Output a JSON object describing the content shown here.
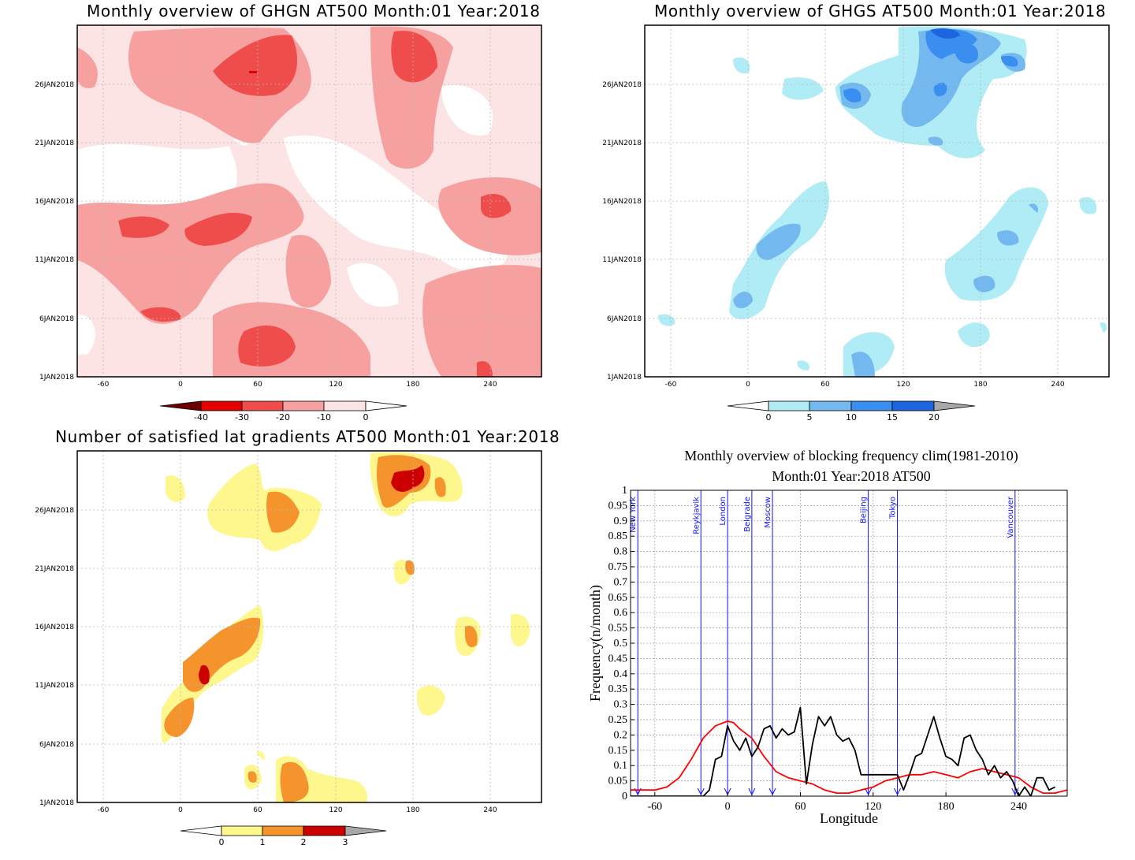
{
  "panels": {
    "ghgn": {
      "title": "Monthly overview of GHGN AT500 Month:01 Year:2018",
      "colorbar_labels": [
        "-40",
        "-30",
        "-20",
        "-10",
        "0"
      ],
      "colors": [
        "#6b0000",
        "#e50000",
        "#ef4c4c",
        "#f7a0a0",
        "#fde4e4",
        "#ffffff"
      ]
    },
    "ghgs": {
      "title": "Monthly overview of GHGS AT500 Month:01 Year:2018",
      "colorbar_labels": [
        "0",
        "5",
        "10",
        "15",
        "20"
      ],
      "colors": [
        "#ffffff",
        "#b0ecf5",
        "#74b8f0",
        "#3a8ef0",
        "#1c64e0",
        "#a8a8a8"
      ]
    },
    "grad": {
      "title": "Number of satisfied lat gradients AT500 Month:01 Year:2018",
      "colorbar_labels": [
        "0",
        "1",
        "2",
        "3"
      ],
      "colors": [
        "#ffffff",
        "#fdf78e",
        "#f5942c",
        "#cc0000",
        "#a8a8a8"
      ]
    },
    "blocking": {
      "title_line1": "Monthly overview of blocking frequency clim(1981-2010)",
      "title_line2": "Month:01 Year:2018  AT500",
      "xlabel": "Longitude",
      "ylabel": "Frequency(n/month)"
    }
  },
  "shared_axes": {
    "x_ticks": [
      "-60",
      "0",
      "60",
      "120",
      "180",
      "240"
    ],
    "date_ticks": [
      "1JAN2018",
      "6JAN2018",
      "11JAN2018",
      "16JAN2018",
      "21JAN2018",
      "26JAN2018"
    ]
  },
  "chart_data": [
    {
      "type": "heatmap",
      "title": "Monthly overview of GHGN AT500 Month:01 Year:2018",
      "xlim": [
        -80,
        280
      ],
      "ylim": [
        "1JAN2018",
        "31JAN2018"
      ],
      "x_ticks": [
        -60,
        0,
        60,
        120,
        180,
        240
      ],
      "legend_levels": [
        -40,
        -30,
        -20,
        -10,
        0
      ],
      "blobs": [
        {
          "lon": 60,
          "day": 28,
          "level": -20
        },
        {
          "lon": 170,
          "day": 28,
          "level": -20
        },
        {
          "lon": 230,
          "day": 16,
          "level": -20
        },
        {
          "lon": 0,
          "day": 14,
          "level": -20
        },
        {
          "lon": 40,
          "day": 13,
          "level": -20
        },
        {
          "lon": -30,
          "day": 14,
          "level": -20
        },
        {
          "lon": 240,
          "day": 1,
          "level": -20
        }
      ]
    },
    {
      "type": "heatmap",
      "title": "Monthly overview of GHGS AT500 Month:01 Year:2018",
      "xlim": [
        -80,
        280
      ],
      "ylim": [
        "1JAN2018",
        "31JAN2018"
      ],
      "x_ticks": [
        -60,
        0,
        60,
        120,
        180,
        240
      ],
      "legend_levels": [
        0,
        5,
        10,
        15,
        20
      ],
      "blobs": [
        {
          "lon": 175,
          "day": 30,
          "level": 15
        },
        {
          "lon": 85,
          "day": 25,
          "level": 10
        },
        {
          "lon": 150,
          "day": 23,
          "level": 10
        },
        {
          "lon": 30,
          "day": 12,
          "level": 10
        },
        {
          "lon": 200,
          "day": 9,
          "level": 10
        },
        {
          "lon": -5,
          "day": 7,
          "level": 10
        },
        {
          "lon": 90,
          "day": 2,
          "level": 10
        }
      ]
    },
    {
      "type": "heatmap",
      "title": "Number of satisfied lat gradients AT500 Month:01 Year:2018",
      "xlim": [
        -80,
        280
      ],
      "ylim": [
        "1JAN2018",
        "31JAN2018"
      ],
      "x_ticks": [
        -60,
        0,
        60,
        120,
        180,
        240
      ],
      "legend_levels": [
        0,
        1,
        2,
        3
      ],
      "blobs": [
        {
          "lon": 175,
          "day": 29,
          "level": 3
        },
        {
          "lon": 80,
          "day": 26,
          "level": 2
        },
        {
          "lon": 18,
          "day": 12,
          "level": 3
        },
        {
          "lon": 0,
          "day": 8,
          "level": 2
        },
        {
          "lon": 225,
          "day": 15,
          "level": 2
        },
        {
          "lon": 90,
          "day": 2,
          "level": 2
        }
      ]
    },
    {
      "type": "line",
      "title": "Monthly overview of blocking frequency clim(1981-2010)",
      "subtitle": "Month:01 Year:2018  AT500",
      "xlabel": "Longitude",
      "ylabel": "Frequency(n/month)",
      "xlim": [
        -80,
        280
      ],
      "ylim": [
        0,
        1
      ],
      "x_ticks": [
        -60,
        0,
        60,
        120,
        180,
        240
      ],
      "y_ticks": [
        0,
        0.05,
        0.1,
        0.15,
        0.2,
        0.25,
        0.3,
        0.35,
        0.4,
        0.45,
        0.5,
        0.55,
        0.6,
        0.65,
        0.7,
        0.75,
        0.8,
        0.85,
        0.9,
        0.95,
        1
      ],
      "grid": true,
      "cities": [
        {
          "name": "New York",
          "lon": -74
        },
        {
          "name": "Reykjavik",
          "lon": -22
        },
        {
          "name": "London",
          "lon": 0
        },
        {
          "name": "Belgrade",
          "lon": 20
        },
        {
          "name": "Moscow",
          "lon": 37
        },
        {
          "name": "Beijing",
          "lon": 116
        },
        {
          "name": "Tokyo",
          "lon": 140
        },
        {
          "name": "Vancouver",
          "lon": 237
        }
      ],
      "series": [
        {
          "color": "#ff0000",
          "x": [
            -80,
            -60,
            -50,
            -40,
            -30,
            -20,
            -10,
            0,
            5,
            10,
            20,
            30,
            40,
            50,
            60,
            70,
            80,
            90,
            100,
            110,
            120,
            130,
            140,
            150,
            160,
            170,
            180,
            190,
            200,
            210,
            220,
            230,
            240,
            250,
            260,
            270,
            280
          ],
          "y": [
            0.02,
            0.02,
            0.03,
            0.06,
            0.12,
            0.19,
            0.23,
            0.245,
            0.24,
            0.22,
            0.19,
            0.13,
            0.08,
            0.06,
            0.05,
            0.04,
            0.02,
            0.01,
            0.01,
            0.02,
            0.03,
            0.05,
            0.06,
            0.07,
            0.07,
            0.08,
            0.07,
            0.06,
            0.08,
            0.09,
            0.08,
            0.07,
            0.06,
            0.03,
            0.01,
            0.01,
            0.02
          ]
        },
        {
          "color": "#000000",
          "x": [
            -80,
            -20,
            -15,
            -10,
            -5,
            0,
            5,
            10,
            15,
            20,
            25,
            30,
            35,
            40,
            45,
            50,
            55,
            60,
            65,
            70,
            75,
            80,
            85,
            90,
            95,
            100,
            105,
            110,
            115,
            120,
            125,
            130,
            135,
            140,
            145,
            150,
            155,
            160,
            165,
            170,
            175,
            180,
            185,
            190,
            195,
            200,
            205,
            210,
            215,
            220,
            225,
            230,
            235,
            240,
            245,
            250,
            255,
            260,
            265,
            270
          ],
          "y": [
            0,
            0,
            0.02,
            0.12,
            0.13,
            0.23,
            0.18,
            0.15,
            0.19,
            0.13,
            0.16,
            0.22,
            0.23,
            0.19,
            0.22,
            0.2,
            0.21,
            0.29,
            0.04,
            0.17,
            0.26,
            0.23,
            0.26,
            0.2,
            0.18,
            0.19,
            0.15,
            0.07,
            0.07,
            0.07,
            0.07,
            0.07,
            0.07,
            0.07,
            0.02,
            0.07,
            0.13,
            0.14,
            0.2,
            0.26,
            0.19,
            0.13,
            0.12,
            0.1,
            0.19,
            0.2,
            0.15,
            0.12,
            0.07,
            0.1,
            0.06,
            0.08,
            0.05,
            0,
            0.03,
            0,
            0.06,
            0.06,
            0.02,
            0.03
          ]
        }
      ]
    }
  ]
}
